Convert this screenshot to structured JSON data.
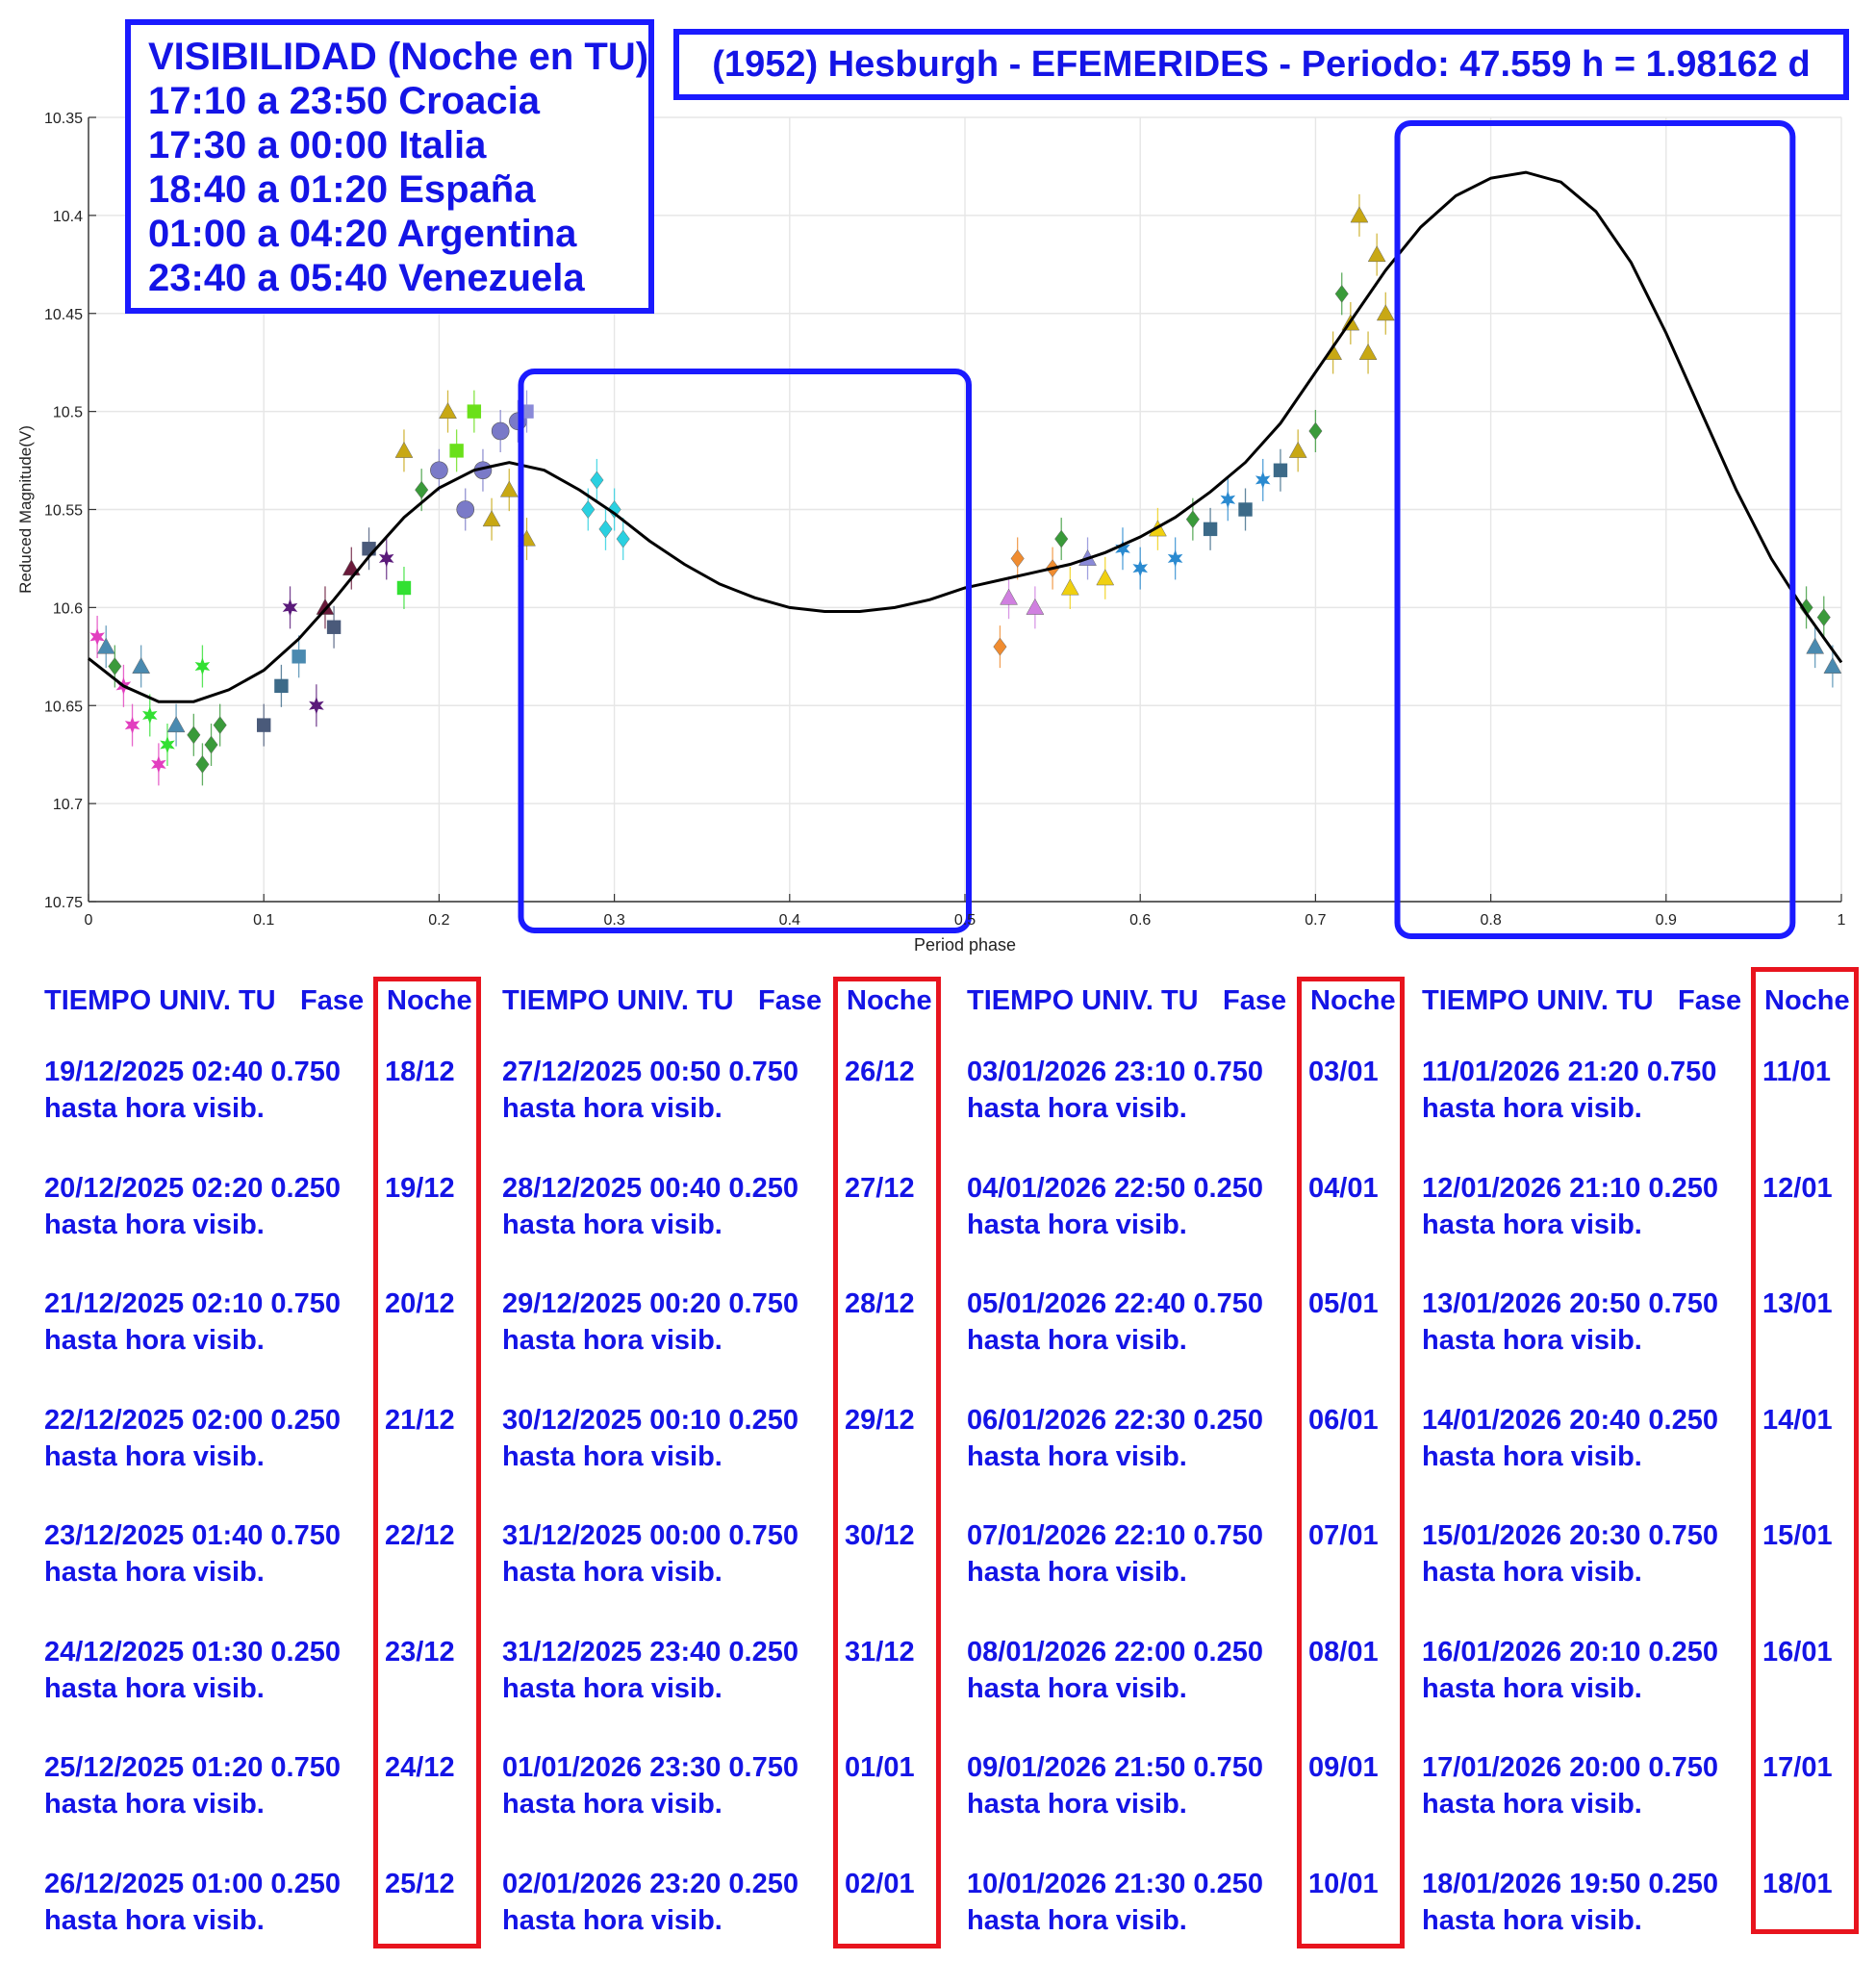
{
  "colors": {
    "blue": "#1414e6",
    "red": "#e8141e",
    "curve": "#000000",
    "frame": "#1a1aff"
  },
  "visibility": {
    "lines": [
      "VISIBILIDAD (Noche en TU)",
      "17:10 a 23:50 Croacia",
      "17:30 a 00:00 Italia",
      "18:40 a 01:20 España",
      "01:00 a 04:20 Argentina",
      "23:40 a 05:40 Venezuela"
    ]
  },
  "header_title": "(1952) Hesburgh - EFEMERIDES - Periodo: 47.559 h = 1.98162 d",
  "chart_data": {
    "type": "scatter",
    "xlabel": "Period phase",
    "ylabel": "Reduced Magnitude(V)",
    "xlim": [
      0,
      1
    ],
    "ylim": [
      10.75,
      10.35
    ],
    "y_inverted": true,
    "grid": true,
    "x_ticks": [
      "0",
      "0.1",
      "0.2",
      "0.3",
      "0.4",
      "0.5",
      "0.6",
      "0.7",
      "0.8",
      "0.9",
      "1"
    ],
    "y_ticks": [
      "10.35",
      "10.4",
      "10.45",
      "10.5",
      "10.55",
      "10.6",
      "10.65",
      "10.7",
      "10.75"
    ],
    "fit_curve": {
      "x": [
        0,
        0.02,
        0.04,
        0.06,
        0.08,
        0.1,
        0.12,
        0.14,
        0.16,
        0.18,
        0.2,
        0.22,
        0.24,
        0.26,
        0.28,
        0.3,
        0.32,
        0.34,
        0.36,
        0.38,
        0.4,
        0.42,
        0.44,
        0.46,
        0.48,
        0.5,
        0.52,
        0.54,
        0.56,
        0.58,
        0.6,
        0.62,
        0.64,
        0.66,
        0.68,
        0.7,
        0.72,
        0.74,
        0.76,
        0.78,
        0.8,
        0.82,
        0.84,
        0.86,
        0.88,
        0.9,
        0.92,
        0.94,
        0.96,
        0.98,
        1.0
      ],
      "y": [
        10.626,
        10.64,
        10.648,
        10.648,
        10.642,
        10.632,
        10.616,
        10.596,
        10.574,
        10.554,
        10.539,
        10.53,
        10.526,
        10.53,
        10.54,
        10.552,
        10.566,
        10.578,
        10.588,
        10.595,
        10.6,
        10.602,
        10.602,
        10.6,
        10.596,
        10.59,
        10.586,
        10.582,
        10.578,
        10.572,
        10.564,
        10.554,
        10.541,
        10.526,
        10.506,
        10.48,
        10.454,
        10.428,
        10.406,
        10.39,
        10.381,
        10.378,
        10.383,
        10.398,
        10.424,
        10.46,
        10.5,
        10.54,
        10.575,
        10.603,
        10.628
      ]
    },
    "observations": [
      {
        "x": 0.005,
        "y": 10.615,
        "c": "#e23fbf",
        "m": "star"
      },
      {
        "x": 0.01,
        "y": 10.62,
        "c": "#4a8ab0",
        "m": "tri"
      },
      {
        "x": 0.015,
        "y": 10.63,
        "c": "#3a9a3a",
        "m": "dia"
      },
      {
        "x": 0.02,
        "y": 10.64,
        "c": "#e23fbf",
        "m": "star"
      },
      {
        "x": 0.025,
        "y": 10.66,
        "c": "#e23fbf",
        "m": "star"
      },
      {
        "x": 0.03,
        "y": 10.63,
        "c": "#4a8ab0",
        "m": "tri"
      },
      {
        "x": 0.035,
        "y": 10.655,
        "c": "#32e032",
        "m": "star"
      },
      {
        "x": 0.04,
        "y": 10.68,
        "c": "#e23fbf",
        "m": "star"
      },
      {
        "x": 0.045,
        "y": 10.67,
        "c": "#32e032",
        "m": "star"
      },
      {
        "x": 0.05,
        "y": 10.66,
        "c": "#4a8ab0",
        "m": "tri"
      },
      {
        "x": 0.06,
        "y": 10.665,
        "c": "#3a9a3a",
        "m": "dia"
      },
      {
        "x": 0.065,
        "y": 10.68,
        "c": "#3a9a3a",
        "m": "dia"
      },
      {
        "x": 0.07,
        "y": 10.67,
        "c": "#3a9a3a",
        "m": "dia"
      },
      {
        "x": 0.075,
        "y": 10.66,
        "c": "#3a9a3a",
        "m": "dia"
      },
      {
        "x": 0.065,
        "y": 10.63,
        "c": "#32e032",
        "m": "star"
      },
      {
        "x": 0.1,
        "y": 10.66,
        "c": "#4a5a7a",
        "m": "sq"
      },
      {
        "x": 0.11,
        "y": 10.64,
        "c": "#3c6a88",
        "m": "sq"
      },
      {
        "x": 0.12,
        "y": 10.625,
        "c": "#4a8ab0",
        "m": "sq"
      },
      {
        "x": 0.115,
        "y": 10.6,
        "c": "#5a1a7a",
        "m": "star"
      },
      {
        "x": 0.13,
        "y": 10.65,
        "c": "#5a1a7a",
        "m": "star"
      },
      {
        "x": 0.135,
        "y": 10.6,
        "c": "#6a1a3a",
        "m": "tri"
      },
      {
        "x": 0.14,
        "y": 10.61,
        "c": "#4a5a7a",
        "m": "sq"
      },
      {
        "x": 0.15,
        "y": 10.58,
        "c": "#6a1a3a",
        "m": "tri"
      },
      {
        "x": 0.16,
        "y": 10.57,
        "c": "#4a5a7a",
        "m": "sq"
      },
      {
        "x": 0.17,
        "y": 10.575,
        "c": "#5a1a7a",
        "m": "star"
      },
      {
        "x": 0.18,
        "y": 10.59,
        "c": "#32e032",
        "m": "sq"
      },
      {
        "x": 0.18,
        "y": 10.52,
        "c": "#c8a814",
        "m": "tri"
      },
      {
        "x": 0.19,
        "y": 10.54,
        "c": "#3a9a3a",
        "m": "dia"
      },
      {
        "x": 0.2,
        "y": 10.53,
        "c": "#7a7ac8",
        "m": "circ"
      },
      {
        "x": 0.205,
        "y": 10.5,
        "c": "#c8a814",
        "m": "tri"
      },
      {
        "x": 0.21,
        "y": 10.52,
        "c": "#6ae01a",
        "m": "sq"
      },
      {
        "x": 0.215,
        "y": 10.55,
        "c": "#7a7ac8",
        "m": "circ"
      },
      {
        "x": 0.22,
        "y": 10.5,
        "c": "#6ae01a",
        "m": "sq"
      },
      {
        "x": 0.225,
        "y": 10.53,
        "c": "#7a7ac8",
        "m": "circ"
      },
      {
        "x": 0.23,
        "y": 10.555,
        "c": "#c8a814",
        "m": "tri"
      },
      {
        "x": 0.235,
        "y": 10.51,
        "c": "#7a7ac8",
        "m": "circ"
      },
      {
        "x": 0.24,
        "y": 10.54,
        "c": "#c8a814",
        "m": "tri"
      },
      {
        "x": 0.245,
        "y": 10.505,
        "c": "#7a7ac8",
        "m": "circ"
      },
      {
        "x": 0.25,
        "y": 10.5,
        "c": "#8a8ad8",
        "m": "sq"
      },
      {
        "x": 0.25,
        "y": 10.565,
        "c": "#c8a814",
        "m": "tri"
      },
      {
        "x": 0.285,
        "y": 10.55,
        "c": "#2ad0e0",
        "m": "dia"
      },
      {
        "x": 0.29,
        "y": 10.535,
        "c": "#2ad0e0",
        "m": "dia"
      },
      {
        "x": 0.295,
        "y": 10.56,
        "c": "#2ad0e0",
        "m": "dia"
      },
      {
        "x": 0.3,
        "y": 10.55,
        "c": "#2ad0e0",
        "m": "dia"
      },
      {
        "x": 0.305,
        "y": 10.565,
        "c": "#2ad0e0",
        "m": "dia"
      },
      {
        "x": 0.52,
        "y": 10.62,
        "c": "#f08c30",
        "m": "dia"
      },
      {
        "x": 0.525,
        "y": 10.595,
        "c": "#d080e0",
        "m": "tri"
      },
      {
        "x": 0.53,
        "y": 10.575,
        "c": "#f08c30",
        "m": "dia"
      },
      {
        "x": 0.54,
        "y": 10.6,
        "c": "#d080e0",
        "m": "tri"
      },
      {
        "x": 0.55,
        "y": 10.58,
        "c": "#f08c30",
        "m": "dia"
      },
      {
        "x": 0.555,
        "y": 10.565,
        "c": "#3a9a3a",
        "m": "dia"
      },
      {
        "x": 0.56,
        "y": 10.59,
        "c": "#f0d010",
        "m": "tri"
      },
      {
        "x": 0.57,
        "y": 10.575,
        "c": "#8a8ad8",
        "m": "tri"
      },
      {
        "x": 0.58,
        "y": 10.585,
        "c": "#f0d010",
        "m": "tri"
      },
      {
        "x": 0.59,
        "y": 10.57,
        "c": "#2a8ad0",
        "m": "star"
      },
      {
        "x": 0.6,
        "y": 10.58,
        "c": "#2a8ad0",
        "m": "star"
      },
      {
        "x": 0.61,
        "y": 10.56,
        "c": "#f0d010",
        "m": "tri"
      },
      {
        "x": 0.62,
        "y": 10.575,
        "c": "#2a8ad0",
        "m": "star"
      },
      {
        "x": 0.63,
        "y": 10.555,
        "c": "#3a9a3a",
        "m": "dia"
      },
      {
        "x": 0.64,
        "y": 10.56,
        "c": "#3c6a88",
        "m": "sq"
      },
      {
        "x": 0.65,
        "y": 10.545,
        "c": "#2a8ad0",
        "m": "star"
      },
      {
        "x": 0.66,
        "y": 10.55,
        "c": "#3c6a88",
        "m": "sq"
      },
      {
        "x": 0.67,
        "y": 10.535,
        "c": "#2a8ad0",
        "m": "star"
      },
      {
        "x": 0.68,
        "y": 10.53,
        "c": "#3c6a88",
        "m": "sq"
      },
      {
        "x": 0.69,
        "y": 10.52,
        "c": "#c8a814",
        "m": "tri"
      },
      {
        "x": 0.7,
        "y": 10.51,
        "c": "#3a9a3a",
        "m": "dia"
      },
      {
        "x": 0.71,
        "y": 10.47,
        "c": "#c8a814",
        "m": "tri"
      },
      {
        "x": 0.715,
        "y": 10.44,
        "c": "#3a9a3a",
        "m": "dia"
      },
      {
        "x": 0.72,
        "y": 10.455,
        "c": "#c8a814",
        "m": "tri"
      },
      {
        "x": 0.725,
        "y": 10.4,
        "c": "#c8a814",
        "m": "tri"
      },
      {
        "x": 0.73,
        "y": 10.47,
        "c": "#c8a814",
        "m": "tri"
      },
      {
        "x": 0.735,
        "y": 10.42,
        "c": "#c8a814",
        "m": "tri"
      },
      {
        "x": 0.74,
        "y": 10.45,
        "c": "#c8a814",
        "m": "tri"
      },
      {
        "x": 0.98,
        "y": 10.6,
        "c": "#3a9a3a",
        "m": "dia"
      },
      {
        "x": 0.985,
        "y": 10.62,
        "c": "#4a8ab0",
        "m": "tri"
      },
      {
        "x": 0.99,
        "y": 10.605,
        "c": "#3a9a3a",
        "m": "dia"
      },
      {
        "x": 0.995,
        "y": 10.63,
        "c": "#4a8ab0",
        "m": "tri"
      }
    ],
    "highlight_ranges": [
      [
        0.25,
        0.5
      ],
      [
        0.75,
        0.97
      ]
    ]
  },
  "columns": [
    {
      "header": {
        "tiempo": "TIEMPO UNIV. TU",
        "fase": "Fase",
        "noche": "Noche"
      },
      "rows": [
        {
          "line1": "19/12/2025  02:40 0.750",
          "line2": "hasta hora visib.",
          "noche": "18/12"
        },
        {
          "line1": "20/12/2025  02:20 0.250",
          "line2": "hasta hora visib.",
          "noche": "19/12"
        },
        {
          "line1": "21/12/2025  02:10 0.750",
          "line2": "hasta hora visib.",
          "noche": "20/12"
        },
        {
          "line1": "22/12/2025  02:00 0.250",
          "line2": "hasta hora visib.",
          "noche": "21/12"
        },
        {
          "line1": "23/12/2025  01:40 0.750",
          "line2": "hasta hora visib.",
          "noche": "22/12"
        },
        {
          "line1": "24/12/2025  01:30 0.250",
          "line2": "hasta hora visib.",
          "noche": "23/12"
        },
        {
          "line1": "25/12/2025  01:20 0.750",
          "line2": "hasta hora visib.",
          "noche": "24/12"
        },
        {
          "line1": "26/12/2025  01:00 0.250",
          "line2": "hasta hora visib.",
          "noche": "25/12"
        }
      ]
    },
    {
      "header": {
        "tiempo": "TIEMPO UNIV. TU",
        "fase": "Fase",
        "noche": "Noche"
      },
      "rows": [
        {
          "line1": "27/12/2025  00:50 0.750",
          "line2": "hasta hora visib.",
          "noche": "26/12"
        },
        {
          "line1": "28/12/2025  00:40 0.250",
          "line2": "hasta hora visib.",
          "noche": "27/12"
        },
        {
          "line1": "29/12/2025  00:20 0.750",
          "line2": "hasta hora visib.",
          "noche": "28/12"
        },
        {
          "line1": "30/12/2025  00:10 0.250",
          "line2": "hasta hora visib.",
          "noche": "29/12"
        },
        {
          "line1": "31/12/2025  00:00 0.750",
          "line2": "hasta hora visib.",
          "noche": "30/12"
        },
        {
          "line1": "31/12/2025  23:40 0.250",
          "line2": "hasta hora visib.",
          "noche": "31/12"
        },
        {
          "line1": "01/01/2026  23:30 0.750",
          "line2": "hasta hora visib.",
          "noche": "01/01"
        },
        {
          "line1": "02/01/2026  23:20 0.250",
          "line2": "hasta hora visib.",
          "noche": "02/01"
        }
      ]
    },
    {
      "header": {
        "tiempo": "TIEMPO UNIV. TU",
        "fase": "Fase",
        "noche": "Noche"
      },
      "rows": [
        {
          "line1": "03/01/2026  23:10 0.750",
          "line2": "hasta hora visib.",
          "noche": "03/01"
        },
        {
          "line1": "04/01/2026  22:50 0.250",
          "line2": "hasta hora visib.",
          "noche": "04/01"
        },
        {
          "line1": "05/01/2026  22:40 0.750",
          "line2": "hasta hora visib.",
          "noche": "05/01"
        },
        {
          "line1": "06/01/2026  22:30 0.250",
          "line2": "hasta hora visib.",
          "noche": "06/01"
        },
        {
          "line1": "07/01/2026  22:10 0.750",
          "line2": "hasta hora visib.",
          "noche": "07/01"
        },
        {
          "line1": "08/01/2026  22:00 0.250",
          "line2": "hasta hora visib.",
          "noche": "08/01"
        },
        {
          "line1": "09/01/2026  21:50 0.750",
          "line2": "hasta hora visib.",
          "noche": "09/01"
        },
        {
          "line1": "10/01/2026  21:30 0.250",
          "line2": "hasta hora visib.",
          "noche": "10/01"
        }
      ]
    },
    {
      "header": {
        "tiempo": "TIEMPO UNIV. TU",
        "fase": "Fase",
        "noche": "Noche"
      },
      "rows": [
        {
          "line1": "11/01/2026  21:20 0.750",
          "line2": "hasta hora visib.",
          "noche": "11/01"
        },
        {
          "line1": "12/01/2026  21:10 0.250",
          "line2": "hasta hora visib.",
          "noche": "12/01"
        },
        {
          "line1": "13/01/2026  20:50 0.750",
          "line2": "hasta hora visib.",
          "noche": "13/01"
        },
        {
          "line1": "14/01/2026  20:40 0.250",
          "line2": "hasta hora visib.",
          "noche": "14/01"
        },
        {
          "line1": "15/01/2026  20:30 0.750",
          "line2": "hasta hora visib.",
          "noche": "15/01"
        },
        {
          "line1": "16/01/2026  20:10 0.250",
          "line2": "hasta hora visib.",
          "noche": "16/01"
        },
        {
          "line1": "17/01/2026  20:00 0.750",
          "line2": "hasta hora visib.",
          "noche": "17/01"
        },
        {
          "line1": "18/01/2026  19:50 0.250",
          "line2": "hasta hora visib.",
          "noche": "18/01"
        }
      ]
    }
  ]
}
